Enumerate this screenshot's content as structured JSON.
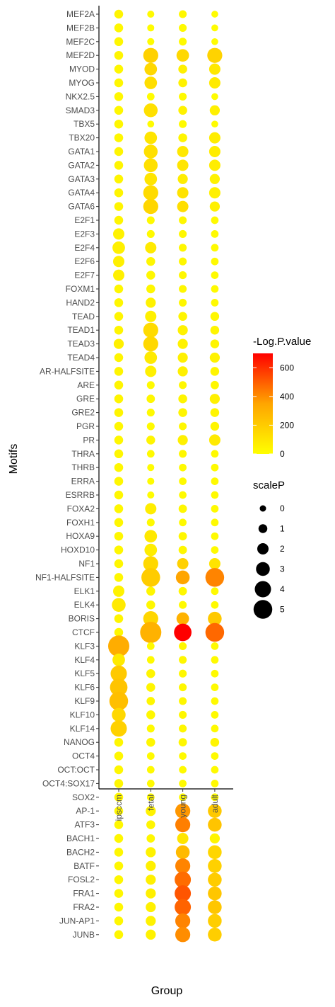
{
  "chart_data": {
    "type": "scatter",
    "title": "",
    "xlabel": "Group",
    "ylabel": "Motifs",
    "groups": [
      "ipsccm",
      "fetal",
      "young",
      "adult"
    ],
    "motifs": [
      "MEF2A",
      "MEF2B",
      "MEF2C",
      "MEF2D",
      "MYOD",
      "MYOG",
      "NKX2.5",
      "SMAD3",
      "TBX5",
      "TBX20",
      "GATA1",
      "GATA2",
      "GATA3",
      "GATA4",
      "GATA6",
      "E2F1",
      "E2F3",
      "E2F4",
      "E2F6",
      "E2F7",
      "FOXM1",
      "HAND2",
      "TEAD",
      "TEAD1",
      "TEAD3",
      "TEAD4",
      "AR-HALFSITE",
      "ARE",
      "GRE",
      "GRE2",
      "PGR",
      "PR",
      "THRA",
      "THRB",
      "ERRA",
      "ESRRB",
      "FOXA2",
      "FOXH1",
      "HOXA9",
      "HOXD10",
      "NF1",
      "NF1-HALFSITE",
      "ELK1",
      "ELK4",
      "BORIS",
      "CTCF",
      "KLF3",
      "KLF4",
      "KLF5",
      "KLF6",
      "KLF9",
      "KLF10",
      "KLF14",
      "NANOG",
      "OCT4",
      "OCT:OCT",
      "OCT4:SOX17",
      "SOX2",
      "AP-1",
      "ATF3",
      "BACH1",
      "BACH2",
      "BATF",
      "FOSL2",
      "FRA1",
      "FRA2",
      "JUN-AP1",
      "JUNB"
    ],
    "logp": [
      [
        40,
        20,
        30,
        10
      ],
      [
        30,
        10,
        20,
        10
      ],
      [
        30,
        10,
        20,
        10
      ],
      [
        40,
        180,
        150,
        170
      ],
      [
        30,
        150,
        60,
        90
      ],
      [
        30,
        130,
        50,
        80
      ],
      [
        30,
        10,
        20,
        10
      ],
      [
        30,
        120,
        50,
        60
      ],
      [
        30,
        10,
        20,
        10
      ],
      [
        30,
        100,
        40,
        70
      ],
      [
        40,
        120,
        90,
        70
      ],
      [
        40,
        120,
        100,
        70
      ],
      [
        40,
        100,
        70,
        50
      ],
      [
        40,
        140,
        110,
        60
      ],
      [
        40,
        160,
        130,
        60
      ],
      [
        40,
        20,
        30,
        20
      ],
      [
        50,
        20,
        30,
        20
      ],
      [
        60,
        80,
        30,
        20
      ],
      [
        60,
        30,
        30,
        20
      ],
      [
        60,
        30,
        30,
        20
      ],
      [
        30,
        30,
        30,
        20
      ],
      [
        30,
        50,
        30,
        20
      ],
      [
        40,
        60,
        40,
        30
      ],
      [
        40,
        140,
        50,
        40
      ],
      [
        60,
        150,
        50,
        40
      ],
      [
        40,
        80,
        60,
        50
      ],
      [
        40,
        60,
        60,
        40
      ],
      [
        40,
        20,
        30,
        30
      ],
      [
        40,
        30,
        40,
        60
      ],
      [
        40,
        20,
        40,
        40
      ],
      [
        30,
        20,
        30,
        40
      ],
      [
        30,
        40,
        60,
        80
      ],
      [
        30,
        20,
        30,
        20
      ],
      [
        30,
        10,
        20,
        20
      ],
      [
        30,
        10,
        20,
        20
      ],
      [
        30,
        10,
        20,
        20
      ],
      [
        30,
        70,
        30,
        20
      ],
      [
        30,
        20,
        20,
        20
      ],
      [
        30,
        90,
        30,
        20
      ],
      [
        30,
        70,
        30,
        20
      ],
      [
        30,
        150,
        180,
        110
      ],
      [
        30,
        200,
        350,
        420
      ],
      [
        50,
        30,
        30,
        20
      ],
      [
        80,
        30,
        20,
        20
      ],
      [
        40,
        160,
        300,
        210
      ],
      [
        30,
        300,
        700,
        480
      ],
      [
        320,
        20,
        30,
        20
      ],
      [
        80,
        20,
        30,
        20
      ],
      [
        210,
        40,
        30,
        20
      ],
      [
        230,
        40,
        30,
        20
      ],
      [
        250,
        30,
        30,
        20
      ],
      [
        150,
        30,
        30,
        20
      ],
      [
        180,
        20,
        30,
        20
      ],
      [
        30,
        30,
        30,
        40
      ],
      [
        30,
        20,
        20,
        20
      ],
      [
        30,
        20,
        20,
        20
      ],
      [
        30,
        20,
        20,
        20
      ],
      [
        30,
        20,
        20,
        20
      ],
      [
        30,
        50,
        380,
        210
      ],
      [
        30,
        40,
        430,
        230
      ],
      [
        30,
        30,
        100,
        40
      ],
      [
        30,
        50,
        270,
        160
      ],
      [
        30,
        60,
        420,
        180
      ],
      [
        30,
        60,
        470,
        200
      ],
      [
        30,
        60,
        520,
        220
      ],
      [
        30,
        60,
        490,
        220
      ],
      [
        30,
        50,
        420,
        190
      ],
      [
        30,
        50,
        400,
        190
      ]
    ],
    "scaleP": [
      [
        1,
        0.3,
        0.6,
        0.2
      ],
      [
        1,
        0.3,
        0.6,
        0.2
      ],
      [
        1,
        0.3,
        0.6,
        0.2
      ],
      [
        1,
        3.5,
        2.5,
        3.5
      ],
      [
        1,
        2.5,
        1,
        2
      ],
      [
        1,
        2.5,
        1,
        2
      ],
      [
        1,
        0.5,
        0.6,
        0.2
      ],
      [
        1,
        3,
        1,
        1.5
      ],
      [
        1,
        0.2,
        0.6,
        0.2
      ],
      [
        1,
        2.5,
        1,
        2
      ],
      [
        1,
        3,
        2,
        2
      ],
      [
        1,
        3,
        2,
        2
      ],
      [
        1,
        2.5,
        1.5,
        1.5
      ],
      [
        1,
        3.5,
        2,
        2
      ],
      [
        1,
        3.5,
        2,
        1.5
      ],
      [
        1,
        0.6,
        0.6,
        0.5
      ],
      [
        2,
        0.6,
        0.6,
        0.5
      ],
      [
        2.5,
        2,
        0.6,
        0.5
      ],
      [
        2,
        1,
        0.6,
        0.5
      ],
      [
        2,
        1,
        0.6,
        0.5
      ],
      [
        1,
        1,
        0.6,
        0.5
      ],
      [
        1,
        1.5,
        0.6,
        0.5
      ],
      [
        1,
        2,
        1,
        1
      ],
      [
        1,
        3.5,
        1.5,
        1
      ],
      [
        1.5,
        3.5,
        1.5,
        1
      ],
      [
        1,
        2.5,
        1.5,
        1.5
      ],
      [
        1,
        2,
        1.5,
        1
      ],
      [
        1,
        0.6,
        0.6,
        0.8
      ],
      [
        1,
        0.8,
        1,
        1.5
      ],
      [
        1,
        0.6,
        1,
        1
      ],
      [
        1,
        0.6,
        0.6,
        1
      ],
      [
        1,
        1,
        1.5,
        2
      ],
      [
        1,
        0.5,
        0.6,
        0.5
      ],
      [
        1,
        0.3,
        0.5,
        0.5
      ],
      [
        1,
        0.3,
        0.5,
        0.5
      ],
      [
        1,
        0.3,
        0.5,
        0.5
      ],
      [
        1,
        2,
        0.8,
        0.5
      ],
      [
        1,
        0.6,
        0.5,
        0.5
      ],
      [
        1,
        2.5,
        0.8,
        0.5
      ],
      [
        1,
        2.5,
        0.8,
        0.5
      ],
      [
        1,
        3.5,
        2,
        2
      ],
      [
        1,
        5,
        3,
        5
      ],
      [
        2,
        1,
        0.8,
        0.5
      ],
      [
        3,
        1,
        0.6,
        0.5
      ],
      [
        1,
        3.5,
        2.5,
        3
      ],
      [
        1,
        6,
        4.5,
        5
      ],
      [
        6,
        0.5,
        0.6,
        0.5
      ],
      [
        2.5,
        0.5,
        0.6,
        0.5
      ],
      [
        4,
        1,
        0.6,
        0.5
      ],
      [
        4.5,
        1,
        0.6,
        0.5
      ],
      [
        5,
        0.8,
        0.6,
        0.5
      ],
      [
        3,
        1,
        0.6,
        0.5
      ],
      [
        4,
        0.6,
        0.6,
        0.5
      ],
      [
        1,
        1,
        0.8,
        1
      ],
      [
        1,
        0.5,
        0.5,
        0.5
      ],
      [
        1,
        0.5,
        0.5,
        0.5
      ],
      [
        1,
        0.5,
        0.5,
        0.5
      ],
      [
        1,
        0.5,
        0.5,
        0.5
      ],
      [
        1,
        1.5,
        3.5,
        3
      ],
      [
        1,
        1,
        3.5,
        3
      ],
      [
        1,
        0.8,
        2,
        1.5
      ],
      [
        1,
        1.5,
        3,
        3
      ],
      [
        1,
        1.5,
        3.5,
        3
      ],
      [
        1,
        1.5,
        4,
        3
      ],
      [
        1,
        1.5,
        4,
        3
      ],
      [
        1,
        1.5,
        4,
        3
      ],
      [
        1,
        1.5,
        3.5,
        3
      ],
      [
        1,
        1.5,
        3.5,
        3
      ]
    ],
    "legend_color": {
      "title": "-Log.P.value",
      "ticks": [
        0,
        200,
        400,
        600
      ],
      "range": [
        0,
        700
      ],
      "low_color": "#ffff00",
      "mid_color": "#ffa500",
      "high_color": "#ff0000"
    },
    "legend_size": {
      "title": "scaleP",
      "values": [
        0,
        1,
        2,
        3,
        4,
        5
      ]
    },
    "legend_placement": "right",
    "grid": false
  }
}
